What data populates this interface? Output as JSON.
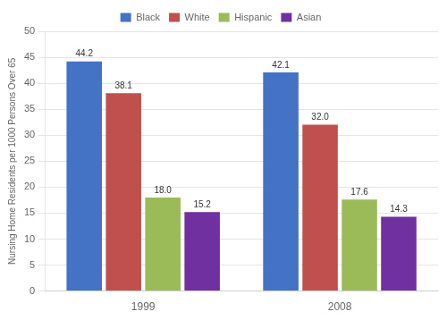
{
  "chart_data": {
    "type": "bar",
    "categories": [
      "1999",
      "2008"
    ],
    "series": [
      {
        "name": "Black",
        "color": "#4472C4",
        "values": [
          44.2,
          42.1
        ],
        "value_labels": [
          "44.2",
          "42.1"
        ]
      },
      {
        "name": "White",
        "color": "#C0504D",
        "values": [
          38.1,
          32.0
        ],
        "value_labels": [
          "38.1",
          "32.0"
        ]
      },
      {
        "name": "Hispanic",
        "color": "#9BBB59",
        "values": [
          18.0,
          17.6
        ],
        "value_labels": [
          "18.0",
          "17.6"
        ]
      },
      {
        "name": "Asian",
        "color": "#7030A0",
        "values": [
          15.2,
          14.3
        ],
        "value_labels": [
          "15.2",
          "14.3"
        ]
      }
    ],
    "y_label": "Nursing Home Residents per 1000 Persons Over 65",
    "ylim": [
      0,
      50
    ],
    "yticks": [
      0,
      5,
      10,
      15,
      20,
      25,
      30,
      35,
      40,
      45,
      50
    ],
    "grid": true,
    "legend": "top",
    "data_labels": true
  }
}
